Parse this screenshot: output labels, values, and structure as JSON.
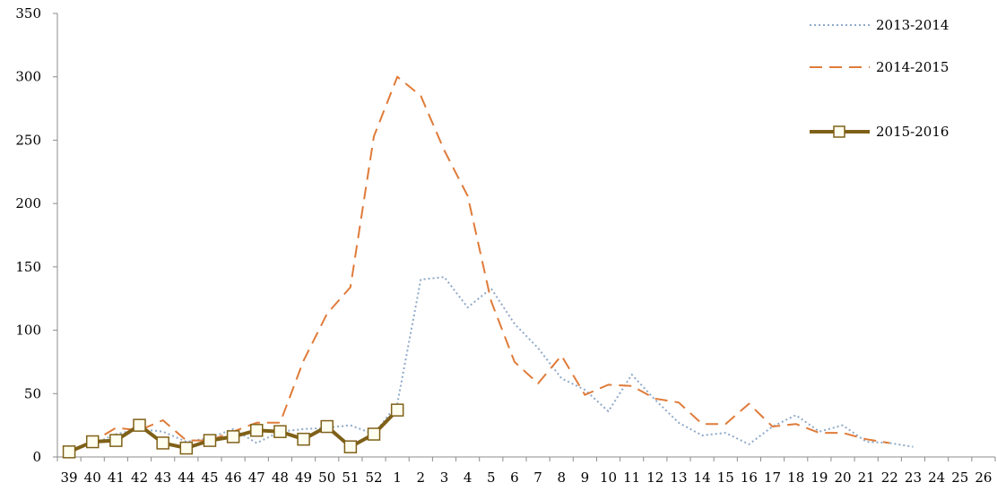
{
  "chart_data": {
    "type": "line",
    "categories": [
      "39",
      "40",
      "41",
      "42",
      "43",
      "44",
      "45",
      "46",
      "47",
      "48",
      "49",
      "50",
      "51",
      "52",
      "1",
      "2",
      "3",
      "4",
      "5",
      "6",
      "7",
      "8",
      "9",
      "10",
      "11",
      "12",
      "13",
      "14",
      "15",
      "16",
      "17",
      "18",
      "19",
      "20",
      "21",
      "22",
      "23",
      "24",
      "25",
      "26"
    ],
    "ylim": [
      0,
      350
    ],
    "yticks": [
      0,
      50,
      100,
      150,
      200,
      250,
      300,
      350
    ],
    "grid": false,
    "legend_position": "top-right",
    "series": [
      {
        "name": "2013-2014",
        "style": "dotted",
        "color": "#8EA9C8",
        "values": [
          5,
          10,
          18,
          22,
          20,
          12,
          15,
          22,
          11,
          20,
          22,
          23,
          25,
          18,
          42,
          140,
          142,
          118,
          133,
          105,
          86,
          62,
          53,
          36,
          65,
          45,
          27,
          17,
          19,
          10,
          24,
          33,
          20,
          25,
          12,
          11,
          8,
          null,
          null,
          null
        ]
      },
      {
        "name": "2014-2015",
        "style": "dashed",
        "color": "#E07B39",
        "values": [
          4,
          12,
          23,
          21,
          29,
          13,
          13,
          20,
          27,
          27,
          76,
          113,
          134,
          253,
          300,
          285,
          242,
          206,
          123,
          75,
          58,
          80,
          49,
          57,
          56,
          46,
          43,
          26,
          26,
          42,
          24,
          26,
          19,
          19,
          14,
          11,
          null,
          null,
          null,
          null
        ]
      },
      {
        "name": "2015-2016",
        "style": "solid-square-markers",
        "color": "#7F6018",
        "values": [
          4,
          12,
          13,
          25,
          11,
          7,
          13,
          16,
          21,
          20,
          14,
          24,
          8,
          18,
          37,
          null,
          null,
          null,
          null,
          null,
          null,
          null,
          null,
          null,
          null,
          null,
          null,
          null,
          null,
          null,
          null,
          null,
          null,
          null,
          null,
          null,
          null,
          null,
          null,
          null
        ]
      }
    ]
  }
}
